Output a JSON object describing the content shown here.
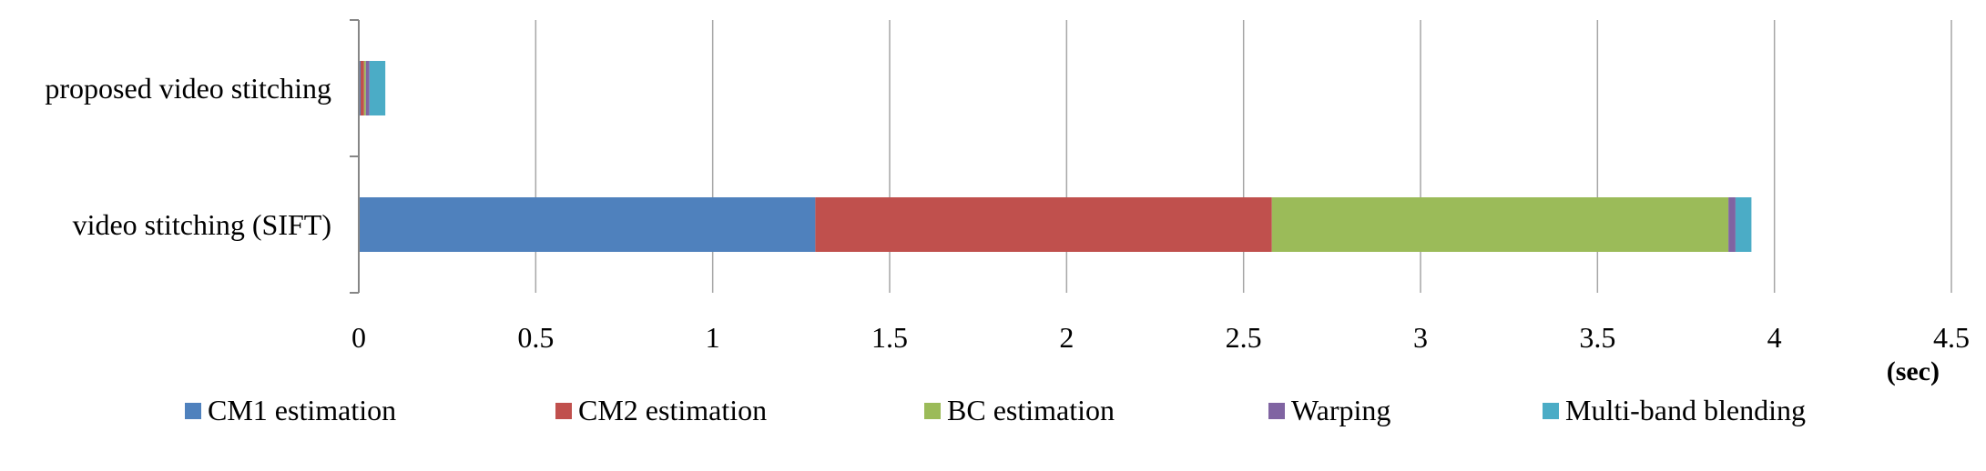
{
  "chart_data": {
    "type": "bar",
    "orientation": "horizontal",
    "stacked": true,
    "categories": [
      "proposed video stitching",
      "video stitching (SIFT)"
    ],
    "series": [
      {
        "name": "CM1 estimation",
        "color": "#4F81BD",
        "values": [
          0.005,
          1.29
        ]
      },
      {
        "name": "CM2 estimation",
        "color": "#C0504D",
        "values": [
          0.01,
          1.29
        ]
      },
      {
        "name": "BC estimation",
        "color": "#9BBB59",
        "values": [
          0.005,
          1.29
        ]
      },
      {
        "name": "Warping",
        "color": "#8064A2",
        "values": [
          0.01,
          0.02
        ]
      },
      {
        "name": "Multi-band blending",
        "color": "#4BACC6",
        "values": [
          0.045,
          0.045
        ]
      }
    ],
    "xlim": [
      0,
      4.5
    ],
    "xticks": [
      "0",
      "0.5",
      "1",
      "1.5",
      "2",
      "2.5",
      "3",
      "3.5",
      "4",
      "4.5"
    ],
    "xlabel": "(sec)",
    "grid": "vertical",
    "legend_position": "bottom"
  }
}
